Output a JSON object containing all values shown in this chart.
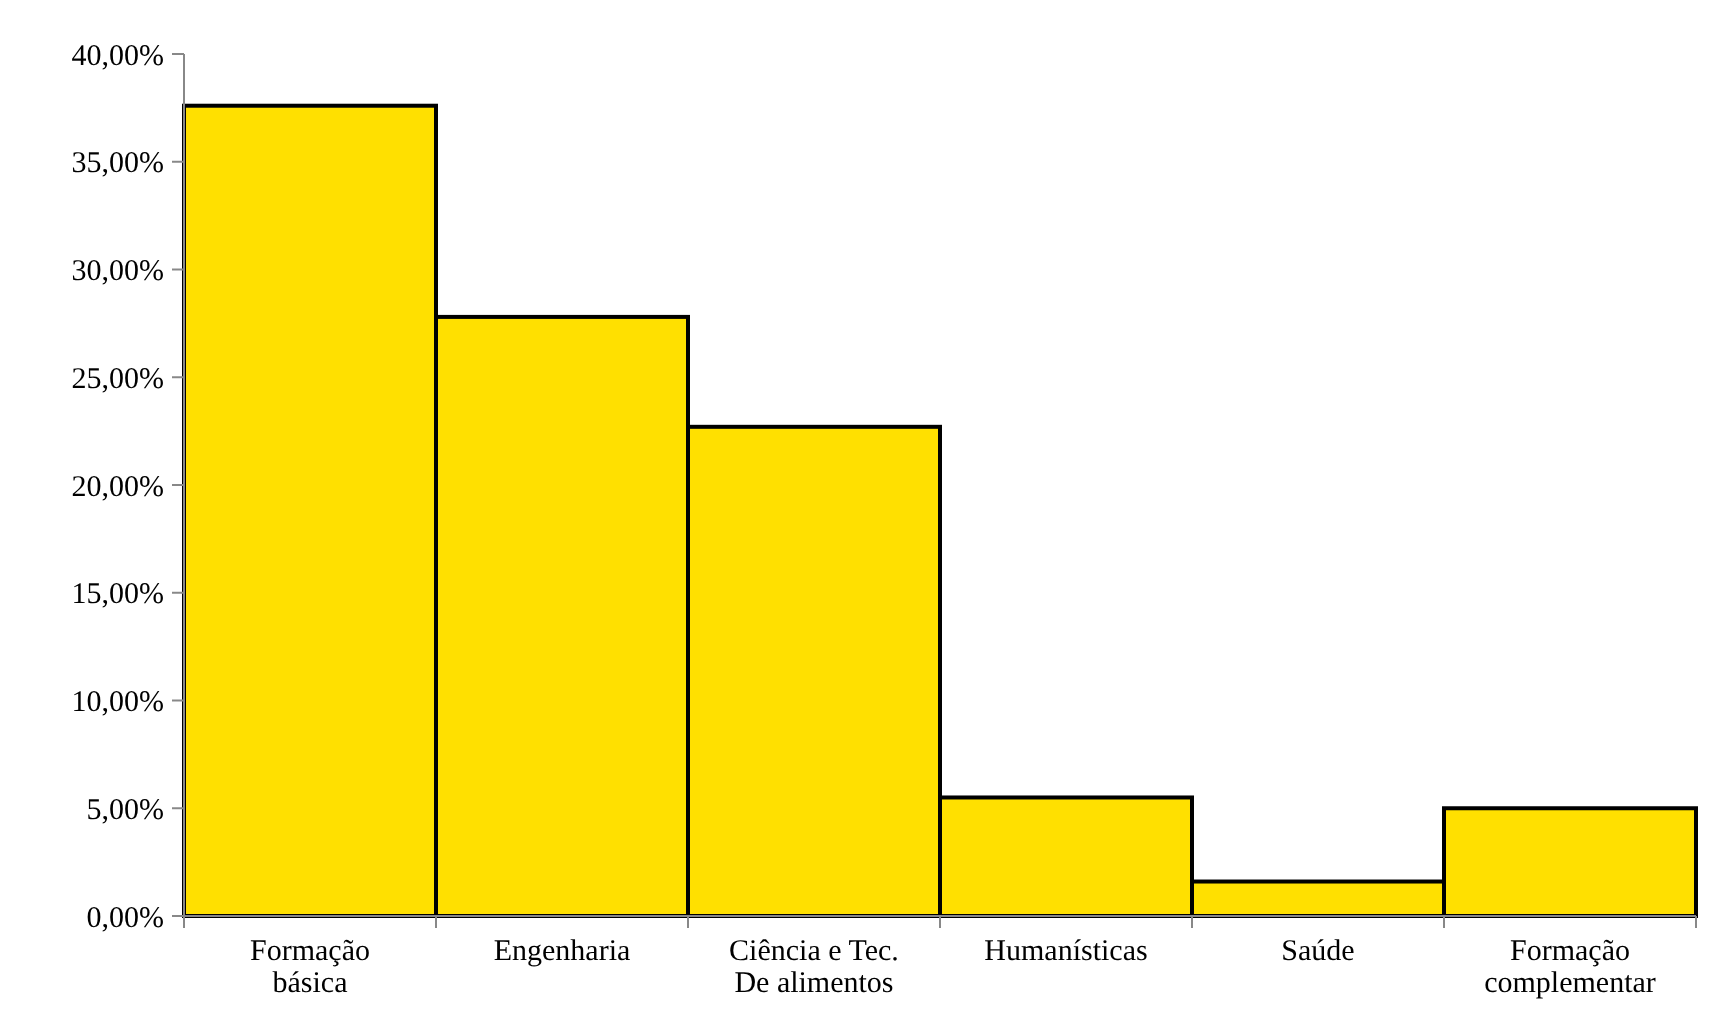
{
  "chart_data": {
    "type": "bar",
    "categories": [
      "Formação básica",
      "Engenharia",
      "Ciência e Tec. De alimentos",
      "Humanísticas",
      "Saúde",
      "Formação complementar"
    ],
    "values": [
      37.6,
      27.8,
      22.7,
      5.5,
      1.6,
      5.0
    ],
    "color": "#ffe000",
    "ylim": [
      0,
      40
    ],
    "yticks": [
      {
        "value": 0,
        "label": "0,00%"
      },
      {
        "value": 5,
        "label": "5,00%"
      },
      {
        "value": 10,
        "label": "10,00%"
      },
      {
        "value": 15,
        "label": "15,00%"
      },
      {
        "value": 20,
        "label": "20,00%"
      },
      {
        "value": 25,
        "label": "25,00%"
      },
      {
        "value": 30,
        "label": "30,00%"
      },
      {
        "value": 35,
        "label": "35,00%"
      },
      {
        "value": 40,
        "label": "40,00%"
      }
    ],
    "grid": false
  }
}
